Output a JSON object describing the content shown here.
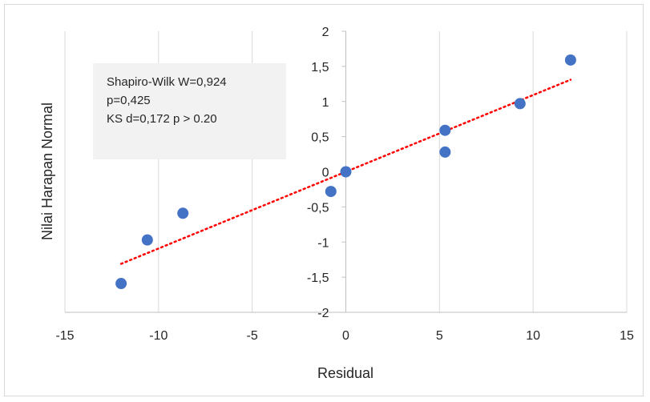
{
  "chart_data": {
    "type": "scatter",
    "title": "",
    "xlabel": "Residual",
    "ylabel": "Nilai Harapan Normal",
    "xlim": [
      -15,
      15
    ],
    "ylim": [
      -2,
      2
    ],
    "x_ticks": [
      -15,
      -10,
      -5,
      0,
      5,
      10,
      15
    ],
    "y_ticks": [
      2,
      1.5,
      1,
      0.5,
      0,
      -0.5,
      -1,
      -1.5,
      -2
    ],
    "x_tick_labels": [
      "-15",
      "-10",
      "-5",
      "0",
      "5",
      "10",
      "15"
    ],
    "y_tick_labels": [
      "2",
      "1,5",
      "1",
      "0,5",
      "0",
      "-0,5",
      "-1",
      "-1,5",
      "-2"
    ],
    "grid": "vertical gridlines",
    "points": [
      {
        "x": -12.0,
        "y": -1.59
      },
      {
        "x": -10.6,
        "y": -0.97
      },
      {
        "x": -8.7,
        "y": -0.59
      },
      {
        "x": -0.8,
        "y": -0.28
      },
      {
        "x": 0.0,
        "y": 0.0
      },
      {
        "x": 5.3,
        "y": 0.28
      },
      {
        "x": 5.3,
        "y": 0.59
      },
      {
        "x": 9.3,
        "y": 0.97
      },
      {
        "x": 12.0,
        "y": 1.59
      }
    ],
    "trendline": {
      "x": [
        -12.0,
        12.0
      ],
      "y": [
        -1.31,
        1.31
      ]
    },
    "colors": {
      "points": "#4472c4",
      "trendline": "#ff0000",
      "grid": "#d9d9d9",
      "axis": "#bfbfbf"
    },
    "annotation": {
      "lines": [
        "Shapiro-Wilk W=0,924",
        "p=0,425",
        "KS d=0,172 p > 0.20"
      ]
    }
  }
}
